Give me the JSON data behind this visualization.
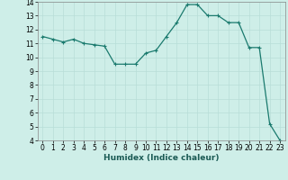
{
  "x": [
    0,
    1,
    2,
    3,
    4,
    5,
    6,
    7,
    8,
    9,
    10,
    11,
    12,
    13,
    14,
    15,
    16,
    17,
    18,
    19,
    20,
    21,
    22,
    23
  ],
  "y": [
    11.5,
    11.3,
    11.1,
    11.3,
    11.0,
    10.9,
    10.8,
    9.5,
    9.5,
    9.5,
    10.3,
    10.5,
    11.5,
    12.5,
    13.8,
    13.8,
    13.0,
    13.0,
    12.5,
    12.5,
    10.7,
    10.7,
    5.2,
    4.0
  ],
  "xlabel": "Humidex (Indice chaleur)",
  "xlim": [
    -0.5,
    23.5
  ],
  "ylim": [
    4,
    14
  ],
  "yticks": [
    4,
    5,
    6,
    7,
    8,
    9,
    10,
    11,
    12,
    13,
    14
  ],
  "xticks": [
    0,
    1,
    2,
    3,
    4,
    5,
    6,
    7,
    8,
    9,
    10,
    11,
    12,
    13,
    14,
    15,
    16,
    17,
    18,
    19,
    20,
    21,
    22,
    23
  ],
  "line_color": "#1a7a6e",
  "marker": "+",
  "marker_size": 3.5,
  "marker_lw": 0.8,
  "line_width": 0.9,
  "bg_color": "#ceeee8",
  "grid_color": "#b8ddd7",
  "xlabel_fontsize": 6.5,
  "tick_fontsize": 5.5
}
